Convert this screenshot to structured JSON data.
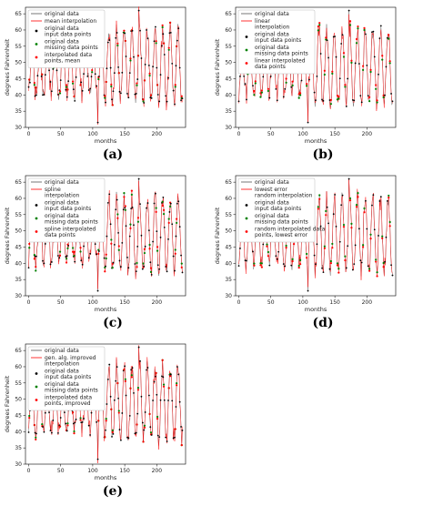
{
  "chart_data": [
    {
      "type": "line",
      "caption": "(a)",
      "xlabel": "months",
      "ylabel": "degrees Fahrenheit",
      "xlim": [
        -5,
        245
      ],
      "ylim": [
        30,
        67
      ],
      "xticks": [
        0,
        50,
        100,
        150,
        200
      ],
      "yticks": [
        30,
        35,
        40,
        45,
        50,
        55,
        60,
        65
      ],
      "grid": false,
      "legend_position": "top-left",
      "interp_color": "#ff0000",
      "legend": [
        {
          "label": "original data",
          "kind": "line",
          "color": "#555555"
        },
        {
          "label": "mean interpolation",
          "kind": "line",
          "color": "#ff0000"
        },
        {
          "label": "original data\ninput data points",
          "kind": "dot",
          "color": "#000000"
        },
        {
          "label": "original data\nmissing data points",
          "kind": "dot",
          "color": "#008000"
        },
        {
          "label": "interpolated data\npoints, mean",
          "kind": "dot",
          "color": "#ff0000"
        }
      ]
    },
    {
      "type": "line",
      "caption": "(b)",
      "xlabel": "months",
      "ylabel": "degrees Fahrenheit",
      "xlim": [
        -5,
        245
      ],
      "ylim": [
        30,
        67
      ],
      "xticks": [
        0,
        50,
        100,
        150,
        200
      ],
      "yticks": [
        30,
        35,
        40,
        45,
        50,
        55,
        60,
        65
      ],
      "grid": false,
      "legend_position": "top-left",
      "interp_color": "#ff0000",
      "legend": [
        {
          "label": "original data",
          "kind": "line",
          "color": "#555555"
        },
        {
          "label": "linear\ninterpolation",
          "kind": "line",
          "color": "#ff0000"
        },
        {
          "label": "original data\ninput data points",
          "kind": "dot",
          "color": "#000000"
        },
        {
          "label": "original data\nmissing data points",
          "kind": "dot",
          "color": "#008000"
        },
        {
          "label": "linear interpolated\ndata points",
          "kind": "dot",
          "color": "#ff0000"
        }
      ]
    },
    {
      "type": "line",
      "caption": "(c)",
      "xlabel": "months",
      "ylabel": "degrees Fahrenheit",
      "xlim": [
        -5,
        245
      ],
      "ylim": [
        30,
        67
      ],
      "xticks": [
        0,
        50,
        100,
        150,
        200
      ],
      "yticks": [
        30,
        35,
        40,
        45,
        50,
        55,
        60,
        65
      ],
      "grid": false,
      "legend_position": "top-left",
      "interp_color": "#ff0000",
      "legend": [
        {
          "label": "original data",
          "kind": "line",
          "color": "#555555"
        },
        {
          "label": "spline\ninterpolation",
          "kind": "line",
          "color": "#ff0000"
        },
        {
          "label": "original data\ninput data points",
          "kind": "dot",
          "color": "#000000"
        },
        {
          "label": "original data\nmissing data points",
          "kind": "dot",
          "color": "#008000"
        },
        {
          "label": "spline interpolated\ndata points",
          "kind": "dot",
          "color": "#ff0000"
        }
      ]
    },
    {
      "type": "line",
      "caption": "(d)",
      "xlabel": "months",
      "ylabel": "degrees Fahrenheit",
      "xlim": [
        -5,
        245
      ],
      "ylim": [
        30,
        67
      ],
      "xticks": [
        0,
        50,
        100,
        150,
        200
      ],
      "yticks": [
        30,
        35,
        40,
        45,
        50,
        55,
        60,
        65
      ],
      "grid": false,
      "legend_position": "top-left",
      "interp_color": "#ff0000",
      "legend": [
        {
          "label": "original data",
          "kind": "line",
          "color": "#555555"
        },
        {
          "label": "lowest error\nrandom interpolation",
          "kind": "line",
          "color": "#ff0000"
        },
        {
          "label": "original data\ninput data points",
          "kind": "dot",
          "color": "#000000"
        },
        {
          "label": "original data\nmissing data points",
          "kind": "dot",
          "color": "#008000"
        },
        {
          "label": "random interpolated data\npoints, lowest error",
          "kind": "dot",
          "color": "#ff0000"
        }
      ]
    },
    {
      "type": "line",
      "caption": "(e)",
      "xlabel": "months",
      "ylabel": "degrees Fahrenheit",
      "xlim": [
        -5,
        245
      ],
      "ylim": [
        30,
        67
      ],
      "xticks": [
        0,
        50,
        100,
        150,
        200
      ],
      "yticks": [
        30,
        35,
        40,
        45,
        50,
        55,
        60,
        65
      ],
      "grid": false,
      "legend_position": "top-left",
      "interp_color": "#ff0000",
      "legend": [
        {
          "label": "original data",
          "kind": "line",
          "color": "#555555"
        },
        {
          "label": "gen. alg. improved\ninterpolation",
          "kind": "line",
          "color": "#ff0000"
        },
        {
          "label": "original data\ninput data points",
          "kind": "dot",
          "color": "#000000"
        },
        {
          "label": "original data\nmissing data points",
          "kind": "dot",
          "color": "#008000"
        },
        {
          "label": "interpolated data\npoints, improved",
          "kind": "dot",
          "color": "#ff0000"
        }
      ]
    }
  ]
}
